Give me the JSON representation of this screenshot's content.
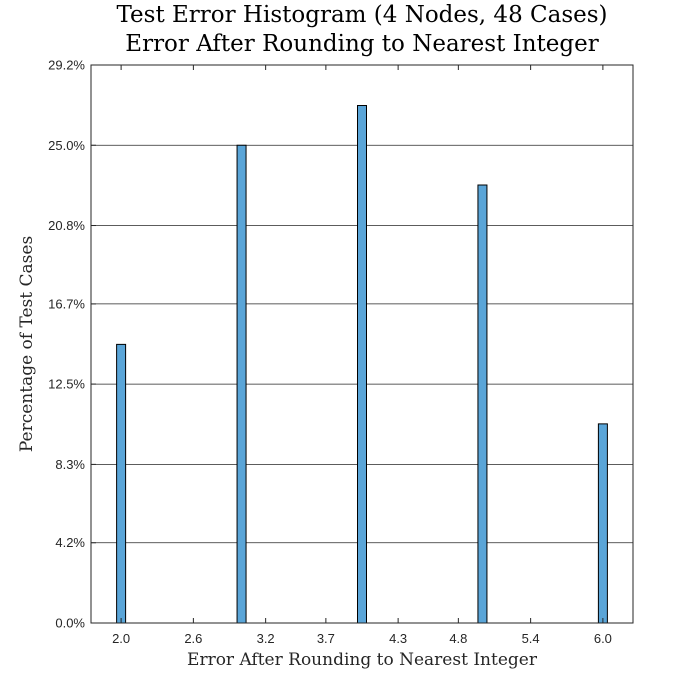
{
  "chart_data": {
    "type": "bar",
    "title": "Test Error Histogram (4 Nodes, 48 Cases)",
    "subtitle": "Error After Rounding to Nearest Integer",
    "xlabel": "Error After Rounding to Nearest Integer",
    "ylabel": "Percentage of Test Cases",
    "x": [
      2,
      3,
      4,
      5,
      6
    ],
    "values": [
      14.58,
      25.0,
      27.08,
      22.92,
      10.42
    ],
    "xlim": [
      1.75,
      6.25
    ],
    "ylim": [
      0,
      29.2
    ],
    "x_ticks": [
      2.0,
      2.6,
      3.2,
      3.7,
      4.3,
      4.8,
      5.4,
      6.0
    ],
    "x_tick_labels": [
      "2.0",
      "2.6",
      "3.2",
      "3.7",
      "4.3",
      "4.8",
      "5.4",
      "6.0"
    ],
    "y_ticks": [
      0,
      4.2,
      8.3,
      12.5,
      16.7,
      20.8,
      25.0,
      29.2
    ],
    "y_tick_labels": [
      "0.0%",
      "4.2%",
      "8.3%",
      "12.5%",
      "16.7%",
      "20.8%",
      "25.0%",
      "29.2%"
    ],
    "grid": "horizontal",
    "bar_color": "#5aa5d8",
    "bar_edge_color": "#000000"
  }
}
